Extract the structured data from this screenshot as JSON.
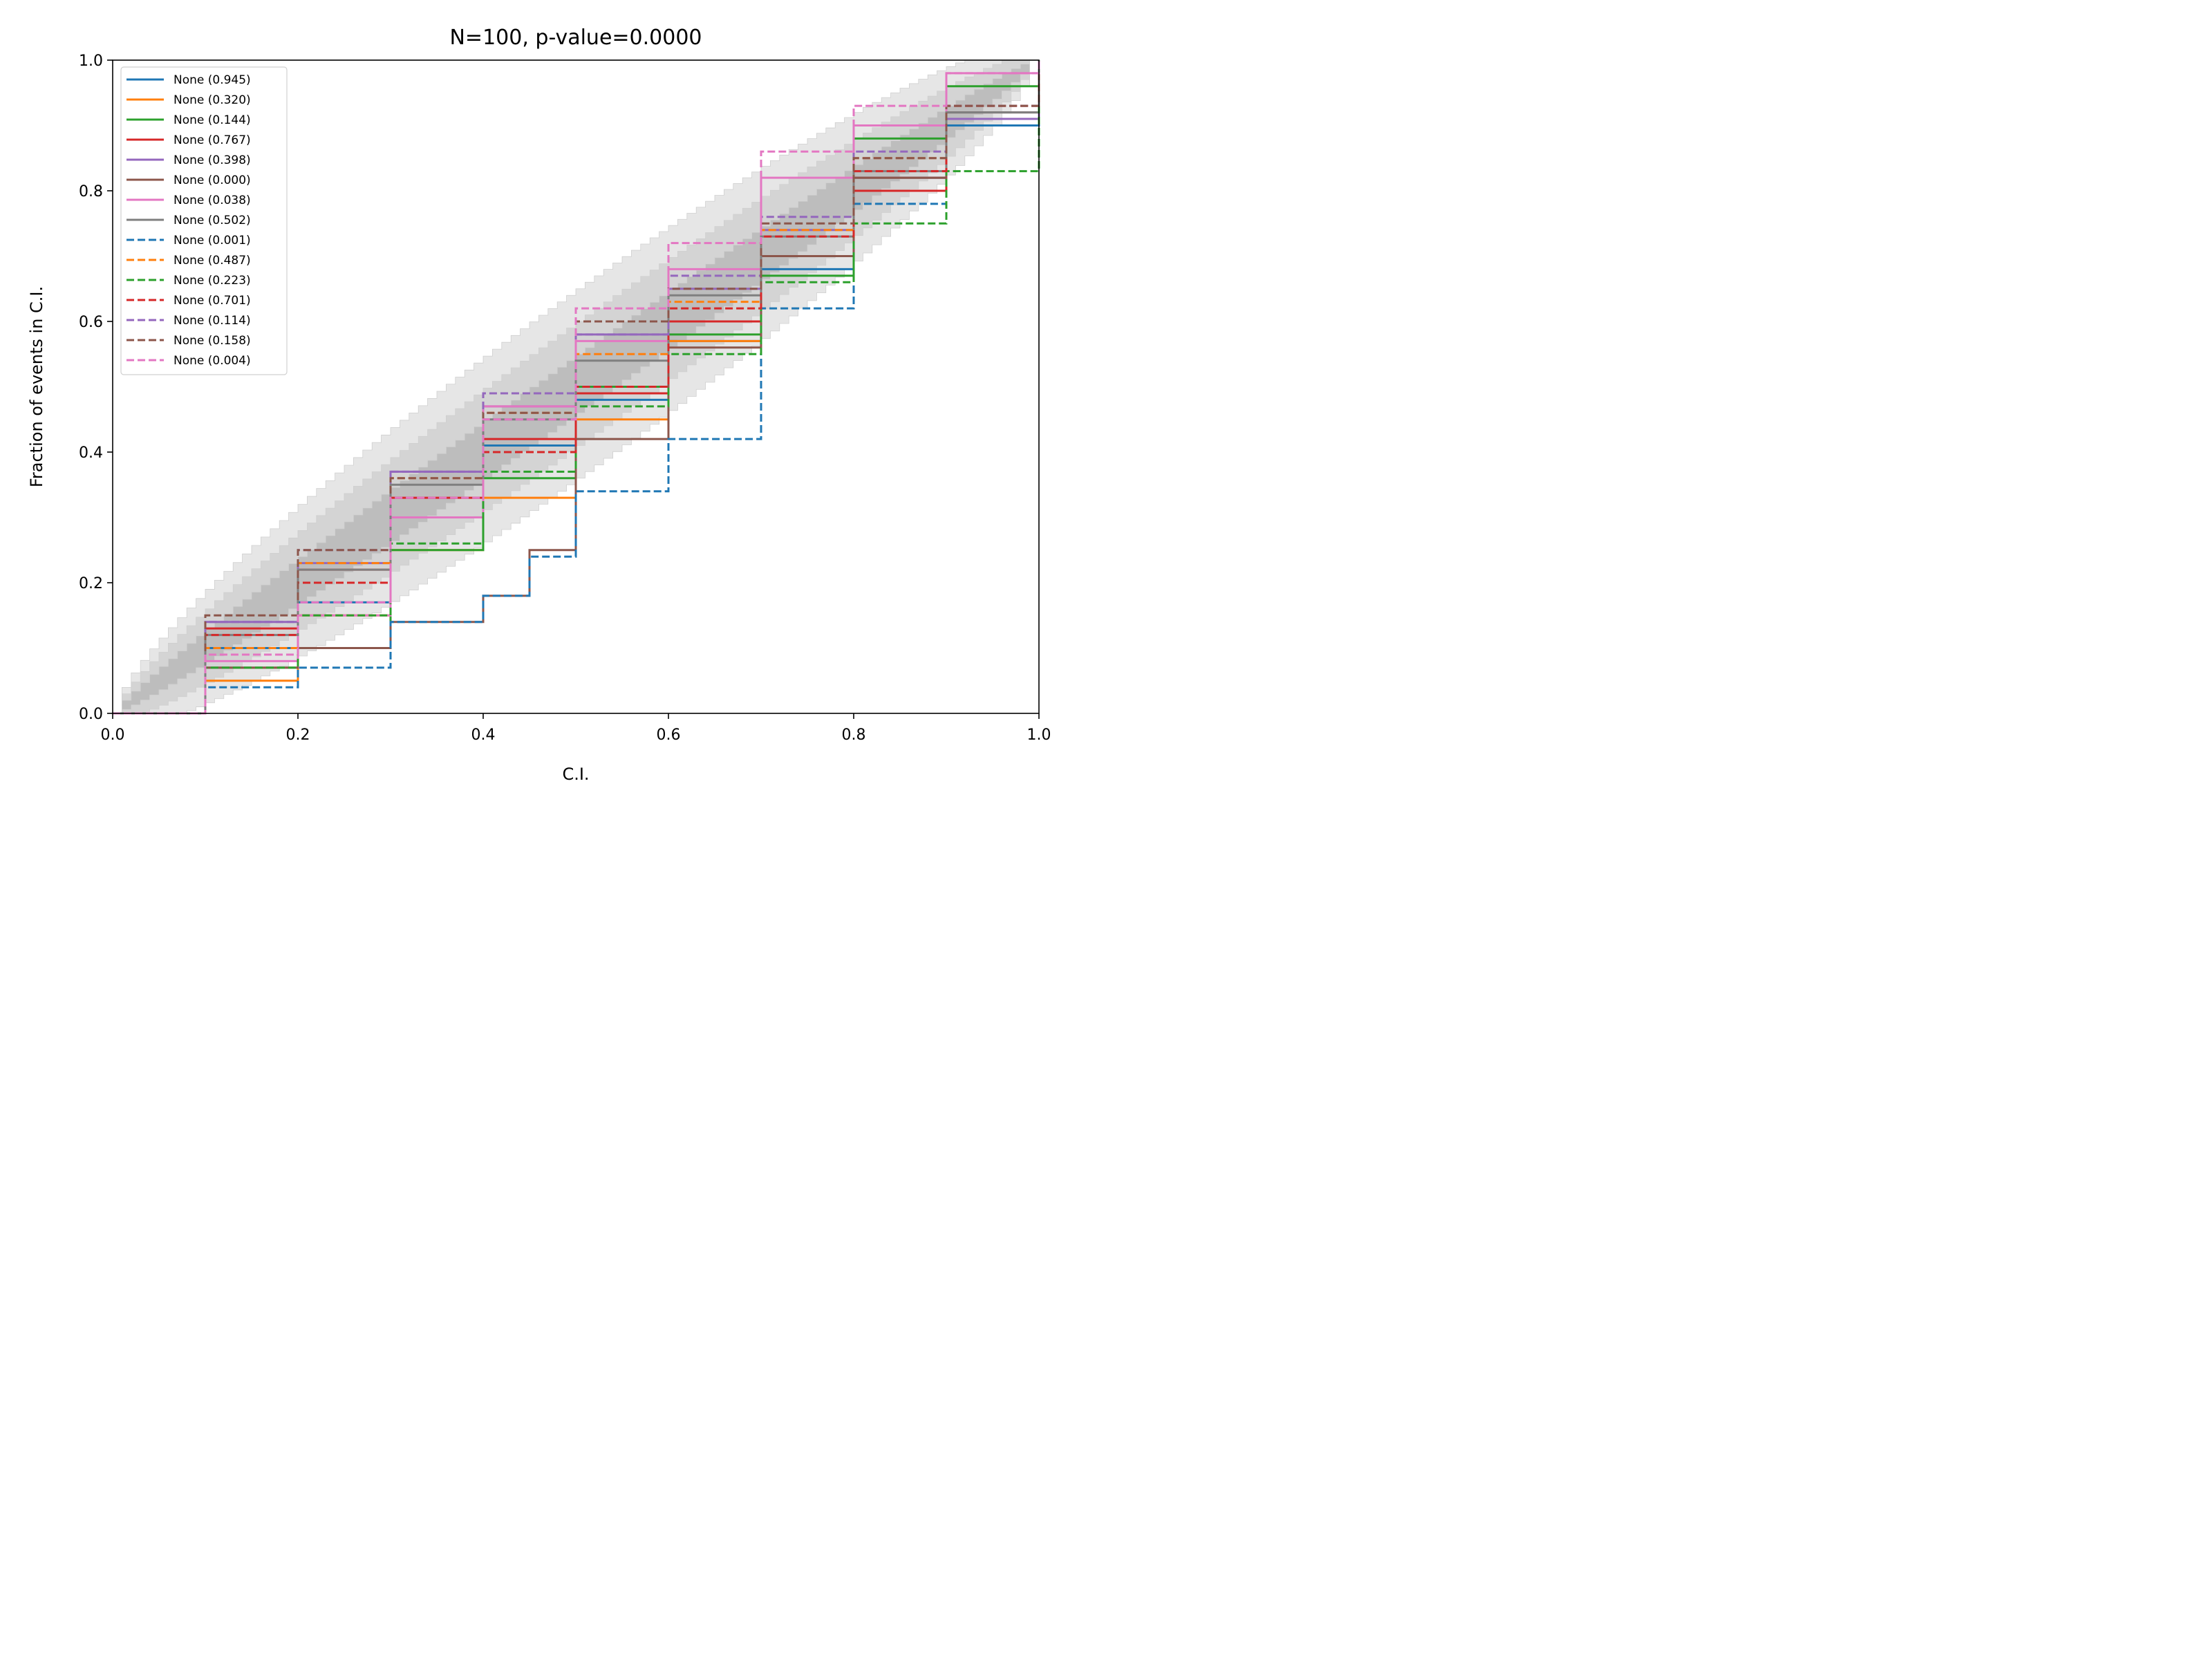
{
  "chart_data": {
    "type": "line",
    "title": "N=100, p-value=0.0000",
    "xlabel": "C.I.",
    "ylabel": "Fraction of events in C.I.",
    "xlim": [
      0,
      1
    ],
    "ylim": [
      0,
      1
    ],
    "xticks": [
      "0.0",
      "0.2",
      "0.4",
      "0.6",
      "0.8",
      "1.0"
    ],
    "yticks": [
      "0.0",
      "0.2",
      "0.4",
      "0.6",
      "0.8",
      "1.0"
    ],
    "grid": false,
    "legend_position": "upper-left",
    "confidence_bands": [
      {
        "level": "inner",
        "color": "#bdbdbd",
        "halfwidth_at_half": 0.05
      },
      {
        "level": "middle",
        "color": "#d4d4d4",
        "halfwidth_at_half": 0.1
      },
      {
        "level": "outer",
        "color": "#e6e6e6",
        "halfwidth_at_half": 0.15
      }
    ],
    "series": [
      {
        "name": "None (0.945)",
        "color": "#1f77b4",
        "dash": "solid",
        "points": [
          [
            0,
            0
          ],
          [
            0.1,
            0.1
          ],
          [
            0.2,
            0.17
          ],
          [
            0.3,
            0.3
          ],
          [
            0.4,
            0.41
          ],
          [
            0.5,
            0.48
          ],
          [
            0.6,
            0.57
          ],
          [
            0.7,
            0.68
          ],
          [
            0.8,
            0.82
          ],
          [
            0.9,
            0.9
          ],
          [
            1,
            1
          ]
        ]
      },
      {
        "name": "None (0.320)",
        "color": "#ff7f0e",
        "dash": "solid",
        "points": [
          [
            0,
            0
          ],
          [
            0.1,
            0.05
          ],
          [
            0.2,
            0.15
          ],
          [
            0.3,
            0.25
          ],
          [
            0.4,
            0.33
          ],
          [
            0.5,
            0.45
          ],
          [
            0.6,
            0.57
          ],
          [
            0.7,
            0.7
          ],
          [
            0.8,
            0.82
          ],
          [
            0.9,
            0.91
          ],
          [
            1,
            1
          ]
        ]
      },
      {
        "name": "None (0.144)",
        "color": "#2ca02c",
        "dash": "solid",
        "points": [
          [
            0,
            0
          ],
          [
            0.1,
            0.07
          ],
          [
            0.2,
            0.1
          ],
          [
            0.3,
            0.25
          ],
          [
            0.4,
            0.36
          ],
          [
            0.5,
            0.5
          ],
          [
            0.6,
            0.58
          ],
          [
            0.7,
            0.67
          ],
          [
            0.8,
            0.88
          ],
          [
            0.9,
            0.96
          ],
          [
            1,
            1
          ]
        ]
      },
      {
        "name": "None (0.767)",
        "color": "#d62728",
        "dash": "solid",
        "points": [
          [
            0,
            0
          ],
          [
            0.1,
            0.13
          ],
          [
            0.2,
            0.22
          ],
          [
            0.3,
            0.33
          ],
          [
            0.4,
            0.42
          ],
          [
            0.5,
            0.49
          ],
          [
            0.6,
            0.6
          ],
          [
            0.7,
            0.7
          ],
          [
            0.8,
            0.8
          ],
          [
            0.9,
            0.91
          ],
          [
            1,
            1
          ]
        ]
      },
      {
        "name": "None (0.398)",
        "color": "#9467bd",
        "dash": "solid",
        "points": [
          [
            0,
            0
          ],
          [
            0.1,
            0.14
          ],
          [
            0.2,
            0.23
          ],
          [
            0.3,
            0.37
          ],
          [
            0.4,
            0.47
          ],
          [
            0.5,
            0.58
          ],
          [
            0.6,
            0.65
          ],
          [
            0.7,
            0.74
          ],
          [
            0.8,
            0.82
          ],
          [
            0.9,
            0.91
          ],
          [
            1,
            1
          ]
        ]
      },
      {
        "name": "None (0.000)",
        "color": "#8c564b",
        "dash": "solid",
        "points": [
          [
            0,
            0
          ],
          [
            0.1,
            0.07
          ],
          [
            0.2,
            0.1
          ],
          [
            0.3,
            0.14
          ],
          [
            0.4,
            0.18
          ],
          [
            0.45,
            0.25
          ],
          [
            0.5,
            0.42
          ],
          [
            0.6,
            0.56
          ],
          [
            0.7,
            0.7
          ],
          [
            0.8,
            0.82
          ],
          [
            0.9,
            0.92
          ],
          [
            1,
            1
          ]
        ]
      },
      {
        "name": "None (0.038)",
        "color": "#e377c2",
        "dash": "solid",
        "points": [
          [
            0,
            0
          ],
          [
            0.1,
            0.08
          ],
          [
            0.2,
            0.15
          ],
          [
            0.3,
            0.3
          ],
          [
            0.4,
            0.47
          ],
          [
            0.5,
            0.57
          ],
          [
            0.6,
            0.68
          ],
          [
            0.7,
            0.82
          ],
          [
            0.8,
            0.9
          ],
          [
            0.9,
            0.98
          ],
          [
            1,
            1
          ]
        ]
      },
      {
        "name": "None (0.502)",
        "color": "#7f7f7f",
        "dash": "solid",
        "points": [
          [
            0,
            0
          ],
          [
            0.1,
            0.12
          ],
          [
            0.2,
            0.22
          ],
          [
            0.3,
            0.35
          ],
          [
            0.4,
            0.45
          ],
          [
            0.5,
            0.54
          ],
          [
            0.6,
            0.64
          ],
          [
            0.7,
            0.73
          ],
          [
            0.8,
            0.83
          ],
          [
            0.9,
            0.92
          ],
          [
            1,
            1
          ]
        ]
      },
      {
        "name": "None (0.001)",
        "color": "#1f77b4",
        "dash": "dashed",
        "points": [
          [
            0,
            0
          ],
          [
            0.1,
            0.04
          ],
          [
            0.2,
            0.07
          ],
          [
            0.3,
            0.14
          ],
          [
            0.4,
            0.18
          ],
          [
            0.45,
            0.24
          ],
          [
            0.5,
            0.34
          ],
          [
            0.6,
            0.42
          ],
          [
            0.7,
            0.62
          ],
          [
            0.8,
            0.78
          ],
          [
            0.9,
            0.9
          ],
          [
            1,
            1
          ]
        ]
      },
      {
        "name": "None (0.487)",
        "color": "#ff7f0e",
        "dash": "dashed",
        "points": [
          [
            0,
            0
          ],
          [
            0.1,
            0.1
          ],
          [
            0.2,
            0.23
          ],
          [
            0.3,
            0.36
          ],
          [
            0.4,
            0.46
          ],
          [
            0.5,
            0.55
          ],
          [
            0.6,
            0.63
          ],
          [
            0.7,
            0.74
          ],
          [
            0.8,
            0.85
          ],
          [
            0.9,
            0.93
          ],
          [
            1,
            1
          ]
        ]
      },
      {
        "name": "None (0.223)",
        "color": "#2ca02c",
        "dash": "dashed",
        "points": [
          [
            0,
            0
          ],
          [
            0.1,
            0.07
          ],
          [
            0.2,
            0.15
          ],
          [
            0.3,
            0.26
          ],
          [
            0.4,
            0.37
          ],
          [
            0.5,
            0.47
          ],
          [
            0.6,
            0.55
          ],
          [
            0.7,
            0.66
          ],
          [
            0.8,
            0.75
          ],
          [
            0.9,
            0.83
          ],
          [
            1,
            1
          ]
        ]
      },
      {
        "name": "None (0.701)",
        "color": "#d62728",
        "dash": "dashed",
        "points": [
          [
            0,
            0
          ],
          [
            0.1,
            0.12
          ],
          [
            0.2,
            0.2
          ],
          [
            0.3,
            0.33
          ],
          [
            0.4,
            0.4
          ],
          [
            0.5,
            0.5
          ],
          [
            0.6,
            0.62
          ],
          [
            0.7,
            0.73
          ],
          [
            0.8,
            0.83
          ],
          [
            0.9,
            0.93
          ],
          [
            1,
            1
          ]
        ]
      },
      {
        "name": "None (0.114)",
        "color": "#9467bd",
        "dash": "dashed",
        "points": [
          [
            0,
            0
          ],
          [
            0.1,
            0.14
          ],
          [
            0.2,
            0.25
          ],
          [
            0.3,
            0.37
          ],
          [
            0.4,
            0.49
          ],
          [
            0.5,
            0.58
          ],
          [
            0.6,
            0.67
          ],
          [
            0.7,
            0.76
          ],
          [
            0.8,
            0.86
          ],
          [
            0.9,
            0.93
          ],
          [
            1,
            1
          ]
        ]
      },
      {
        "name": "None (0.158)",
        "color": "#8c564b",
        "dash": "dashed",
        "points": [
          [
            0,
            0
          ],
          [
            0.1,
            0.15
          ],
          [
            0.2,
            0.25
          ],
          [
            0.3,
            0.36
          ],
          [
            0.4,
            0.46
          ],
          [
            0.5,
            0.6
          ],
          [
            0.6,
            0.65
          ],
          [
            0.7,
            0.75
          ],
          [
            0.8,
            0.85
          ],
          [
            0.9,
            0.93
          ],
          [
            1,
            1
          ]
        ]
      },
      {
        "name": "None (0.004)",
        "color": "#e377c2",
        "dash": "dashed",
        "points": [
          [
            0,
            0
          ],
          [
            0.1,
            0.09
          ],
          [
            0.2,
            0.17
          ],
          [
            0.3,
            0.33
          ],
          [
            0.4,
            0.45
          ],
          [
            0.5,
            0.62
          ],
          [
            0.6,
            0.72
          ],
          [
            0.7,
            0.86
          ],
          [
            0.8,
            0.93
          ],
          [
            0.9,
            0.98
          ],
          [
            1,
            1
          ]
        ]
      }
    ]
  }
}
